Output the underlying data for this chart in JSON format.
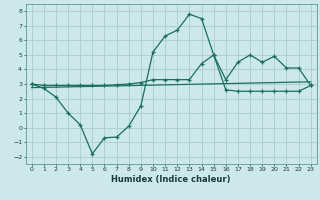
{
  "xlabel": "Humidex (Indice chaleur)",
  "ylabel": "",
  "xlim": [
    -0.5,
    23.5
  ],
  "ylim": [
    -2.5,
    8.5
  ],
  "yticks": [
    -2,
    -1,
    0,
    1,
    2,
    3,
    4,
    5,
    6,
    7,
    8
  ],
  "xticks": [
    0,
    1,
    2,
    3,
    4,
    5,
    6,
    7,
    8,
    9,
    10,
    11,
    12,
    13,
    14,
    15,
    16,
    17,
    18,
    19,
    20,
    21,
    22,
    23
  ],
  "bg_color": "#cce8e8",
  "grid_color": "#aed0d0",
  "line_color": "#1a6e62",
  "line1_x": [
    0,
    1,
    2,
    3,
    4,
    5,
    6,
    7,
    8,
    9,
    10,
    11,
    12,
    13,
    14,
    15,
    16,
    17,
    18,
    19,
    20,
    21,
    22,
    23
  ],
  "line1_y": [
    3.0,
    2.7,
    2.1,
    1.0,
    0.2,
    -1.8,
    -0.7,
    -0.65,
    0.1,
    1.5,
    5.2,
    6.3,
    6.7,
    7.8,
    7.5,
    5.0,
    2.6,
    2.5,
    2.5,
    2.5,
    2.5,
    2.5,
    2.5,
    2.9
  ],
  "line2_x": [
    0,
    1,
    2,
    3,
    4,
    5,
    6,
    7,
    8,
    9,
    10,
    11,
    12,
    13,
    14,
    15,
    16,
    17,
    18,
    19,
    20,
    21,
    22,
    23
  ],
  "line2_y": [
    3.0,
    2.9,
    2.9,
    2.9,
    2.9,
    2.9,
    2.9,
    2.95,
    3.0,
    3.1,
    3.3,
    3.3,
    3.3,
    3.3,
    4.4,
    5.0,
    3.3,
    4.5,
    5.0,
    4.5,
    4.9,
    4.1,
    4.1,
    2.9
  ],
  "line3_x": [
    0,
    23
  ],
  "line3_y": [
    2.75,
    3.15
  ]
}
